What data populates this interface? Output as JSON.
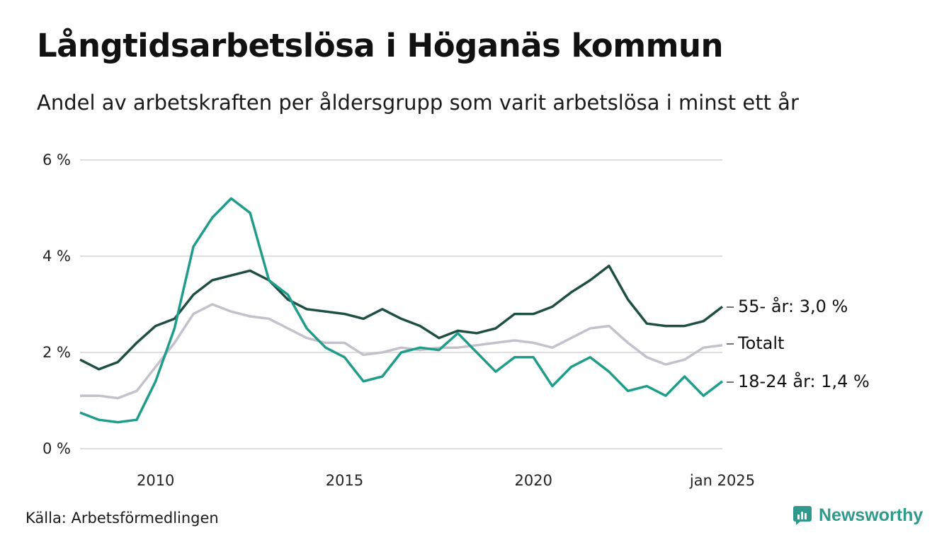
{
  "header": {
    "title": "Långtidsarbetslösa i Höganäs kommun",
    "subtitle": "Andel av arbetskraften per åldersgrupp som varit arbetslösa i minst ett år"
  },
  "footer": {
    "source": "Källa: Arbetsförmedlingen",
    "brand": "Newsworthy"
  },
  "colors": {
    "series_55": "#1f4e45",
    "series_total": "#c4c0cc",
    "series_18_24": "#1f9d8a",
    "grid": "#dedede",
    "brand": "#2f9a8b"
  },
  "chart_data": {
    "type": "line",
    "x_ticks": [
      2010,
      2015,
      2020
    ],
    "x_end_label": "jan 2025",
    "y_ticks": [
      0,
      2,
      4,
      6
    ],
    "y_tick_labels": [
      "0 %",
      "2 %",
      "4 %",
      "6 %"
    ],
    "ylim": [
      0,
      6.5
    ],
    "xlim": [
      2008.0,
      2025.0
    ],
    "grid": true,
    "series": [
      {
        "name": "Totalt",
        "end_label": "Totalt",
        "color": "#c4c0cc",
        "points": [
          [
            2008.0,
            1.1
          ],
          [
            2008.5,
            1.1
          ],
          [
            2009.0,
            1.05
          ],
          [
            2009.5,
            1.2
          ],
          [
            2010.0,
            1.7
          ],
          [
            2010.5,
            2.2
          ],
          [
            2011.0,
            2.8
          ],
          [
            2011.5,
            3.0
          ],
          [
            2012.0,
            2.85
          ],
          [
            2012.5,
            2.75
          ],
          [
            2013.0,
            2.7
          ],
          [
            2013.5,
            2.5
          ],
          [
            2014.0,
            2.3
          ],
          [
            2014.5,
            2.2
          ],
          [
            2015.0,
            2.2
          ],
          [
            2015.5,
            1.95
          ],
          [
            2016.0,
            2.0
          ],
          [
            2016.5,
            2.1
          ],
          [
            2017.0,
            2.05
          ],
          [
            2017.5,
            2.1
          ],
          [
            2018.0,
            2.1
          ],
          [
            2018.5,
            2.15
          ],
          [
            2019.0,
            2.2
          ],
          [
            2019.5,
            2.25
          ],
          [
            2020.0,
            2.2
          ],
          [
            2020.5,
            2.1
          ],
          [
            2021.0,
            2.3
          ],
          [
            2021.5,
            2.5
          ],
          [
            2022.0,
            2.55
          ],
          [
            2022.5,
            2.2
          ],
          [
            2023.0,
            1.9
          ],
          [
            2023.5,
            1.75
          ],
          [
            2024.0,
            1.85
          ],
          [
            2024.5,
            2.1
          ],
          [
            2025.0,
            2.15
          ]
        ]
      },
      {
        "name": "55- år",
        "end_label": "55- år: 3,0 %",
        "color": "#1f4e45",
        "points": [
          [
            2008.0,
            1.85
          ],
          [
            2008.5,
            1.65
          ],
          [
            2009.0,
            1.8
          ],
          [
            2009.5,
            2.2
          ],
          [
            2010.0,
            2.55
          ],
          [
            2010.5,
            2.7
          ],
          [
            2011.0,
            3.2
          ],
          [
            2011.5,
            3.5
          ],
          [
            2012.0,
            3.6
          ],
          [
            2012.5,
            3.7
          ],
          [
            2013.0,
            3.5
          ],
          [
            2013.5,
            3.1
          ],
          [
            2014.0,
            2.9
          ],
          [
            2014.5,
            2.85
          ],
          [
            2015.0,
            2.8
          ],
          [
            2015.5,
            2.7
          ],
          [
            2016.0,
            2.9
          ],
          [
            2016.5,
            2.7
          ],
          [
            2017.0,
            2.55
          ],
          [
            2017.5,
            2.3
          ],
          [
            2018.0,
            2.45
          ],
          [
            2018.5,
            2.4
          ],
          [
            2019.0,
            2.5
          ],
          [
            2019.5,
            2.8
          ],
          [
            2020.0,
            2.8
          ],
          [
            2020.5,
            2.95
          ],
          [
            2021.0,
            3.25
          ],
          [
            2021.5,
            3.5
          ],
          [
            2022.0,
            3.8
          ],
          [
            2022.5,
            3.1
          ],
          [
            2023.0,
            2.6
          ],
          [
            2023.5,
            2.55
          ],
          [
            2024.0,
            2.55
          ],
          [
            2024.5,
            2.65
          ],
          [
            2025.0,
            2.95
          ]
        ]
      },
      {
        "name": "18-24 år",
        "end_label": "18-24 år: 1,4 %",
        "color": "#1f9d8a",
        "points": [
          [
            2008.0,
            0.75
          ],
          [
            2008.5,
            0.6
          ],
          [
            2009.0,
            0.55
          ],
          [
            2009.5,
            0.6
          ],
          [
            2010.0,
            1.4
          ],
          [
            2010.5,
            2.5
          ],
          [
            2011.0,
            4.2
          ],
          [
            2011.5,
            4.8
          ],
          [
            2012.0,
            5.2
          ],
          [
            2012.5,
            4.9
          ],
          [
            2013.0,
            3.5
          ],
          [
            2013.5,
            3.2
          ],
          [
            2014.0,
            2.5
          ],
          [
            2014.5,
            2.1
          ],
          [
            2015.0,
            1.9
          ],
          [
            2015.5,
            1.4
          ],
          [
            2016.0,
            1.5
          ],
          [
            2016.5,
            2.0
          ],
          [
            2017.0,
            2.1
          ],
          [
            2017.5,
            2.05
          ],
          [
            2018.0,
            2.4
          ],
          [
            2018.5,
            2.0
          ],
          [
            2019.0,
            1.6
          ],
          [
            2019.5,
            1.9
          ],
          [
            2020.0,
            1.9
          ],
          [
            2020.5,
            1.3
          ],
          [
            2021.0,
            1.7
          ],
          [
            2021.5,
            1.9
          ],
          [
            2022.0,
            1.6
          ],
          [
            2022.5,
            1.2
          ],
          [
            2023.0,
            1.3
          ],
          [
            2023.5,
            1.1
          ],
          [
            2024.0,
            1.5
          ],
          [
            2024.5,
            1.1
          ],
          [
            2025.0,
            1.4
          ]
        ]
      }
    ]
  }
}
